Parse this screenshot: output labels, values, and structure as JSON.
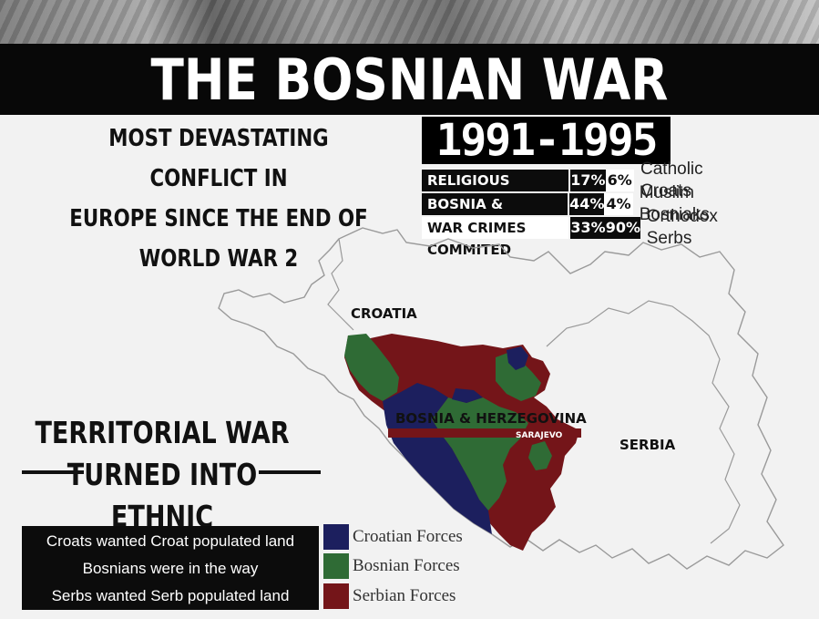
{
  "header": {
    "title": "THE BOSNIAN WAR",
    "subtitle_lines": [
      "MOST DEVASTATING CONFLICT IN",
      "EUROPE SINCE THE END OF",
      "WORLD WAR 2"
    ],
    "years": "1991-1995"
  },
  "stats": {
    "rows": [
      {
        "label": "RELIGIOUS POPULATION",
        "pct_a": "17%",
        "pct_b": "6%",
        "group": "Catholic Croats"
      },
      {
        "label": "BOSNIA & HERZEGOVINA",
        "pct_a": "44%",
        "pct_b": "4%",
        "group": "Muslim Bosniaks"
      },
      {
        "label": "WAR CRIMES COMMITED",
        "pct_a": "33%",
        "pct_b": "90%",
        "group": "Orthodox Serbs"
      }
    ]
  },
  "map": {
    "labels": {
      "croatia": "CROATIA",
      "bosnia": "BOSNIA & HERZEGOVINA",
      "serbia": "SERBIA",
      "sarajevo": "SARAJEVO"
    }
  },
  "territorial": {
    "lines": [
      "TERRITORIAL WAR",
      "TURNED INTO",
      "ETHNIC CLEANSING WAR"
    ]
  },
  "notes": [
    "Croats wanted Croat populated land",
    "Bosnians were in the way",
    "Serbs wanted Serb populated land"
  ],
  "legend": [
    {
      "label": "Croatian Forces",
      "color": "#1c1f5e"
    },
    {
      "label": "Bosnian Forces",
      "color": "#2f6b35"
    },
    {
      "label": "Serbian Forces",
      "color": "#741519"
    }
  ],
  "colors": {
    "croatian": "#1c1f5e",
    "bosnian": "#2f6b35",
    "serbian": "#741519",
    "title_bg": "#080808"
  }
}
